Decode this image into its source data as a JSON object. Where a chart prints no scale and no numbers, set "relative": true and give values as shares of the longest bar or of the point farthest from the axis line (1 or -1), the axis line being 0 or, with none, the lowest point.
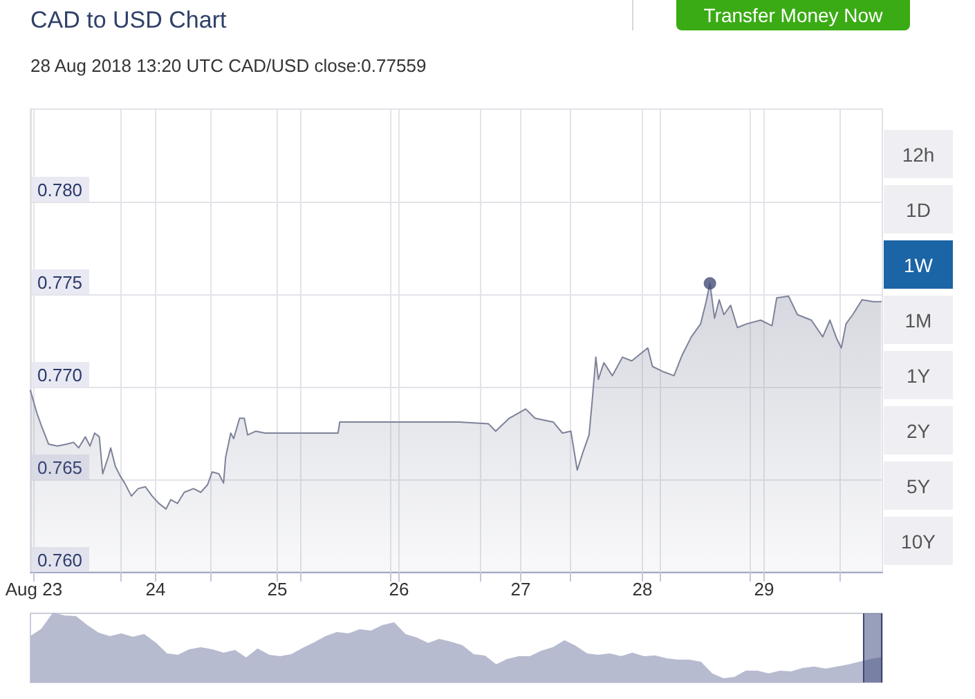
{
  "chart_data": [
    {
      "type": "area",
      "title": "CAD to USD Chart",
      "subtitle": "28 Aug 2018 13:20 UTC CAD/USD close:0.77559",
      "series": [
        {
          "color": "#7d8299",
          "x": [
            "2018-08-22T23:20",
            "2018-08-23T00:35",
            "2018-08-23T01:30",
            "2018-08-23T02:55",
            "2018-08-23T04:40",
            "2018-08-23T06:30",
            "2018-08-23T07:50",
            "2018-08-23T08:50",
            "2018-08-23T10:10",
            "2018-08-23T11:05",
            "2018-08-23T12:00",
            "2018-08-23T12:55",
            "2018-08-23T13:35",
            "2018-08-23T14:40",
            "2018-08-23T15:10",
            "2018-08-23T16:05",
            "2018-08-23T17:00",
            "2018-08-23T17:55",
            "2018-08-23T19:15",
            "2018-08-23T20:35",
            "2018-08-23T22:00",
            "2018-08-23T23:20",
            "2018-08-24T00:40",
            "2018-08-24T02:05",
            "2018-08-24T03:00",
            "2018-08-24T04:20",
            "2018-08-24T05:40",
            "2018-08-24T07:30",
            "2018-08-24T08:55",
            "2018-08-24T10:15",
            "2018-08-24T11:10",
            "2018-08-24T12:30",
            "2018-08-24T13:25",
            "2018-08-24T13:50",
            "2018-08-24T14:50",
            "2018-08-24T15:25",
            "2018-08-24T16:35",
            "2018-08-24T17:30",
            "2018-08-24T18:10",
            "2018-08-24T19:45",
            "2018-08-24T21:35",
            "2018-08-25T04:00",
            "2018-08-25T12:00",
            "2018-08-25T12:20",
            "2018-08-25T22:10",
            "2018-08-26T11:50",
            "2018-08-26T17:40",
            "2018-08-26T19:05",
            "2018-08-26T21:45",
            "2018-08-27T01:00",
            "2018-08-27T02:50",
            "2018-08-27T06:25",
            "2018-08-27T08:15",
            "2018-08-27T09:55",
            "2018-08-27T11:10",
            "2018-08-27T12:20",
            "2018-08-27T13:30",
            "2018-08-27T14:10",
            "2018-08-27T14:50",
            "2018-08-27T15:20",
            "2018-08-27T16:25",
            "2018-08-27T18:05",
            "2018-08-27T20:05",
            "2018-08-27T21:55",
            "2018-08-27T23:15",
            "2018-08-28T01:05",
            "2018-08-28T02:00",
            "2018-08-28T04:15",
            "2018-08-28T06:15",
            "2018-08-28T07:50",
            "2018-08-28T09:40",
            "2018-08-28T11:30",
            "2018-08-28T12:35",
            "2018-08-28T13:20",
            "2018-08-28T14:15",
            "2018-08-28T15:10",
            "2018-08-28T16:05",
            "2018-08-28T17:25",
            "2018-08-28T18:45",
            "2018-08-28T20:35",
            "2018-08-28T23:20",
            "2018-08-29T01:35",
            "2018-08-29T02:30",
            "2018-08-29T04:50",
            "2018-08-29T06:35",
            "2018-08-29T09:20",
            "2018-08-29T11:35",
            "2018-08-29T13:00",
            "2018-08-29T14:20",
            "2018-08-29T15:15",
            "2018-08-29T16:10",
            "2018-08-29T17:30",
            "2018-08-29T19:20",
            "2018-08-29T21:35",
            "2018-08-29T23:05"
          ],
          "values": [
            0.7698,
            0.7686,
            0.7679,
            0.7669,
            0.7668,
            0.7669,
            0.767,
            0.7667,
            0.7673,
            0.7668,
            0.7675,
            0.7673,
            0.7653,
            0.7662,
            0.7667,
            0.7657,
            0.7652,
            0.7648,
            0.7641,
            0.7645,
            0.7646,
            0.7641,
            0.7637,
            0.7634,
            0.7639,
            0.7637,
            0.7643,
            0.7645,
            0.7643,
            0.7647,
            0.7654,
            0.7653,
            0.7648,
            0.7662,
            0.7675,
            0.7672,
            0.7683,
            0.7683,
            0.7674,
            0.7676,
            0.7675,
            0.7675,
            0.7675,
            0.7681,
            0.7681,
            0.7681,
            0.768,
            0.7676,
            0.7683,
            0.7688,
            0.7683,
            0.7681,
            0.7675,
            0.7676,
            0.7655,
            0.7665,
            0.7674,
            0.7694,
            0.7716,
            0.7704,
            0.7713,
            0.7706,
            0.7716,
            0.7714,
            0.7717,
            0.7721,
            0.7711,
            0.7708,
            0.7706,
            0.7717,
            0.7727,
            0.7734,
            0.7746,
            0.77559,
            0.7737,
            0.7747,
            0.7739,
            0.7744,
            0.7732,
            0.7734,
            0.7736,
            0.7733,
            0.7748,
            0.7749,
            0.7739,
            0.7736,
            0.7727,
            0.7736,
            0.7726,
            0.7721,
            0.7734,
            0.7739,
            0.7747,
            0.7746,
            0.7746
          ]
        },
        {
          "type": "scatter",
          "color": "#434c77",
          "x": [
            "2018-08-28T13:20"
          ],
          "values": [
            0.77559
          ]
        }
      ],
      "xlim": [
        "2018-08-22T23:20",
        "2018-08-29T23:20"
      ],
      "xticks": [
        {
          "value": "2018-08-23",
          "label": "Aug 23"
        },
        {
          "value": "2018-08-23T17:04",
          "label": null
        },
        {
          "value": "2018-08-24",
          "label": "24"
        },
        {
          "value": "2018-08-24T10:48",
          "label": null
        },
        {
          "value": "2018-08-25",
          "label": "25"
        },
        {
          "value": "2018-08-25T04:32",
          "label": null
        },
        {
          "value": "2018-08-25T22:16",
          "label": null
        },
        {
          "value": "2018-08-26",
          "label": "26"
        },
        {
          "value": "2018-08-26T16:00",
          "label": null
        },
        {
          "value": "2018-08-27",
          "label": "27"
        },
        {
          "value": "2018-08-27T09:44",
          "label": null
        },
        {
          "value": "2018-08-28",
          "label": "28"
        },
        {
          "value": "2018-08-28T03:28",
          "label": null
        },
        {
          "value": "2018-08-28T21:12",
          "label": null
        },
        {
          "value": "2018-08-29",
          "label": "29"
        },
        {
          "value": "2018-08-29T14:56",
          "label": null
        }
      ],
      "ylim": [
        0.76,
        0.785
      ],
      "yticks": [
        {
          "value": 0.76,
          "label": "0.760"
        },
        0.765,
        {
          "value": 0.77,
          "label": "0.770"
        },
        0.775,
        {
          "value": 0.78,
          "label": "0.780"
        }
      ],
      "grid": true
    },
    {
      "type": "other",
      "annotations": [
        "Transfer Money Now",
        "12h",
        "1D",
        "1W",
        "1M",
        "1Y",
        "2Y",
        "5Y",
        "10Y"
      ]
    },
    {
      "type": "area",
      "relative": true,
      "color": "#b7bbcf",
      "categories": [
        null,
        null,
        null,
        null,
        null,
        null,
        null,
        null,
        null,
        null,
        null,
        null,
        null,
        null,
        null,
        null,
        null,
        null,
        null,
        null,
        null,
        null,
        null,
        null,
        null,
        null,
        null,
        null,
        null,
        null,
        null,
        null,
        null,
        null,
        null,
        null,
        null,
        null,
        null,
        null,
        null,
        null,
        null,
        null,
        null,
        null,
        null,
        null,
        null,
        null,
        null,
        null,
        null,
        null,
        null,
        null,
        null,
        null,
        null,
        null,
        null,
        null,
        null,
        null,
        null,
        null,
        null,
        null,
        null,
        null,
        null,
        null,
        null,
        null,
        null,
        null
      ],
      "values": [
        0.66,
        0.77,
        1,
        0.96,
        0.95,
        0.82,
        0.71,
        0.66,
        0.7,
        0.65,
        0.69,
        0.57,
        0.41,
        0.39,
        0.47,
        0.5,
        0.47,
        0.42,
        0.46,
        0.35,
        0.48,
        0.39,
        0.37,
        0.4,
        0.49,
        0.57,
        0.66,
        0.72,
        0.7,
        0.76,
        0.74,
        0.82,
        0.86,
        0.69,
        0.64,
        0.56,
        0.62,
        0.58,
        0.53,
        0.4,
        0.38,
        0.25,
        0.33,
        0.37,
        0.37,
        0.45,
        0.5,
        0.6,
        0.52,
        0.41,
        0.39,
        0.41,
        0.37,
        0.42,
        0.37,
        0.38,
        0.34,
        0.32,
        0.32,
        0.29,
        0.12,
        0.05,
        0.07,
        0.16,
        0.16,
        0.12,
        0.16,
        0.15,
        0.2,
        0.22,
        0.19,
        0.22,
        0.25,
        0.29,
        0.33,
        0.36
      ]
    }
  ]
}
